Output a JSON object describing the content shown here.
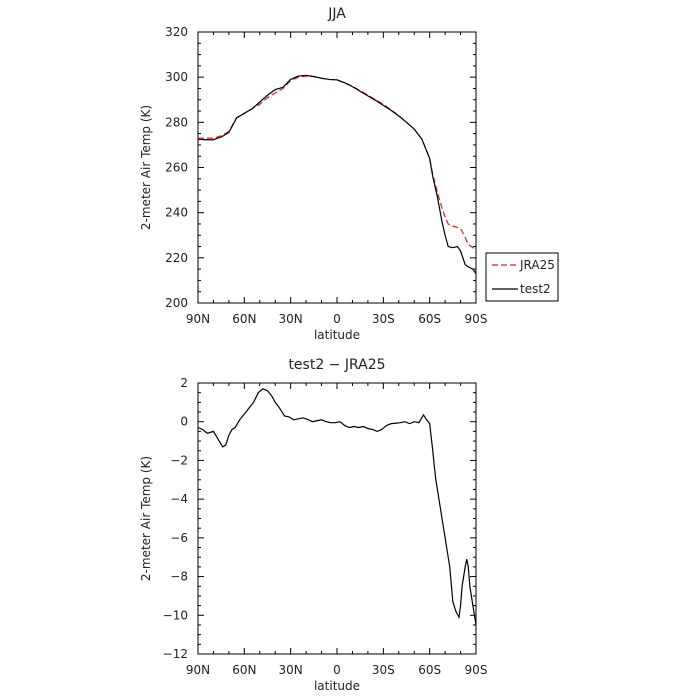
{
  "chart_data": [
    {
      "type": "line",
      "title": "JJA",
      "xlabel": "latitude",
      "ylabel": "2-meter Air Temp (K)",
      "xlim": [
        90,
        -90
      ],
      "ylim": [
        200,
        320
      ],
      "x_ticks": [
        90,
        60,
        30,
        0,
        -30,
        -60,
        -90
      ],
      "x_tick_labels": [
        "90N",
        "60N",
        "30N",
        "0",
        "30S",
        "60S",
        "90S"
      ],
      "y_ticks": [
        200,
        220,
        240,
        260,
        280,
        300,
        320
      ],
      "y_tick_labels": [
        "200",
        "220",
        "240",
        "260",
        "280",
        "300",
        "320"
      ],
      "legend": {
        "placement": "outside-right"
      },
      "series": [
        {
          "name": "JRA25",
          "color": "#e41a1c",
          "dash": "dashed",
          "x": [
            90,
            85,
            80,
            75,
            70,
            65,
            60,
            55,
            50,
            45,
            40,
            35,
            30,
            25,
            20,
            15,
            10,
            5,
            0,
            -5,
            -10,
            -15,
            -20,
            -25,
            -30,
            -35,
            -40,
            -45,
            -50,
            -55,
            -60,
            -62,
            -65,
            -68,
            -70,
            -72,
            -75,
            -78,
            -80,
            -83,
            -85,
            -88,
            -90
          ],
          "y": [
            273,
            273,
            273,
            274,
            276,
            282,
            284,
            286,
            288,
            291,
            293,
            295,
            298.5,
            300,
            300.5,
            300.2,
            299.5,
            299,
            298.8,
            297.5,
            296,
            294,
            292,
            290,
            288,
            285.5,
            283,
            280,
            277,
            272.5,
            264,
            257,
            249,
            242,
            238,
            235,
            234,
            233.5,
            233,
            229,
            226,
            224.5,
            224
          ]
        },
        {
          "name": "test2",
          "color": "#000000",
          "dash": "solid",
          "x": [
            90,
            85,
            80,
            75,
            70,
            65,
            60,
            55,
            50,
            45,
            40,
            35,
            30,
            25,
            20,
            15,
            10,
            5,
            0,
            -5,
            -10,
            -15,
            -20,
            -25,
            -30,
            -35,
            -40,
            -45,
            -50,
            -55,
            -60,
            -62,
            -65,
            -68,
            -70,
            -72,
            -75,
            -78,
            -80,
            -83,
            -85,
            -88,
            -90
          ],
          "y": [
            272.5,
            272.3,
            272.3,
            273.5,
            275.5,
            282,
            284,
            286,
            289,
            292,
            294.5,
            295.5,
            299,
            300.5,
            300.8,
            300.3,
            299.5,
            299,
            298.8,
            297.5,
            295.8,
            293.7,
            291.7,
            289.7,
            287.5,
            285.3,
            282.8,
            280,
            277,
            272.5,
            264,
            256,
            247,
            236,
            230,
            225,
            224.5,
            225,
            223,
            217,
            216,
            215,
            213
          ]
        }
      ]
    },
    {
      "type": "line",
      "title": "test2  −  JRA25",
      "xlabel": "latitude",
      "ylabel": "2-meter Air Temp (K)",
      "xlim": [
        90,
        -90
      ],
      "ylim": [
        -12,
        2
      ],
      "x_ticks": [
        90,
        60,
        30,
        0,
        -30,
        -60,
        -90
      ],
      "x_tick_labels": [
        "90N",
        "60N",
        "30N",
        "0",
        "30S",
        "60S",
        "90S"
      ],
      "y_ticks": [
        -12,
        -10,
        -8,
        -6,
        -4,
        -2,
        0,
        2
      ],
      "y_tick_labels": [
        "−12",
        "−10",
        "−8",
        "−6",
        "−4",
        "−2",
        "0",
        "2"
      ],
      "series": [
        {
          "color": "#000000",
          "dash": "solid",
          "x": [
            90,
            87,
            84,
            80,
            77,
            74,
            72,
            70,
            68,
            66,
            63,
            60,
            57,
            54,
            51,
            48,
            45,
            42,
            40,
            38,
            36,
            34,
            31,
            28,
            25,
            22,
            19,
            16,
            13,
            10,
            7,
            4,
            1,
            -2,
            -5,
            -8,
            -11,
            -14,
            -17,
            -20,
            -23,
            -26,
            -29,
            -32,
            -35,
            -38,
            -41,
            -44,
            -47,
            -50,
            -53,
            -56,
            -58,
            -60,
            -62,
            -63,
            -64,
            -65,
            -67,
            -69,
            -71,
            -73,
            -75,
            -77,
            -79,
            -80,
            -81,
            -83,
            -84,
            -85,
            -86,
            -88,
            -90
          ],
          "y": [
            -0.3,
            -0.4,
            -0.6,
            -0.5,
            -0.9,
            -1.3,
            -1.2,
            -0.7,
            -0.4,
            -0.3,
            0.1,
            0.4,
            0.7,
            1.0,
            1.5,
            1.7,
            1.6,
            1.3,
            1.0,
            0.8,
            0.55,
            0.3,
            0.25,
            0.1,
            0.15,
            0.2,
            0.12,
            0.0,
            0.05,
            0.1,
            0.0,
            -0.05,
            -0.05,
            0.0,
            -0.2,
            -0.3,
            -0.25,
            -0.3,
            -0.25,
            -0.35,
            -0.4,
            -0.5,
            -0.4,
            -0.2,
            -0.1,
            -0.08,
            -0.05,
            0.0,
            -0.1,
            0.0,
            -0.05,
            0.35,
            0.1,
            -0.1,
            -1.5,
            -2.3,
            -3.0,
            -3.5,
            -4.5,
            -5.5,
            -6.5,
            -7.5,
            -9.3,
            -9.8,
            -10.1,
            -9.5,
            -8.5,
            -7.5,
            -7.1,
            -7.5,
            -8.5,
            -9.5,
            -10.5
          ]
        }
      ]
    }
  ]
}
